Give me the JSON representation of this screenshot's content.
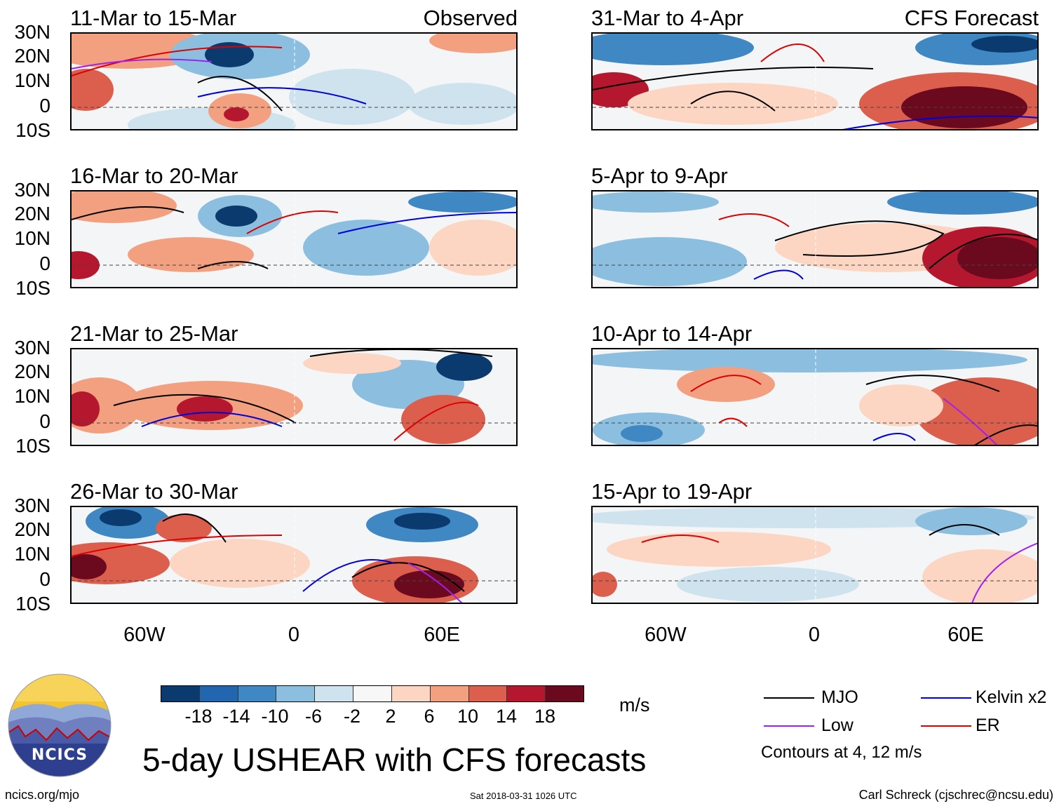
{
  "colors": {
    "mjo": "#000000",
    "low": "#a020f0",
    "kelvin": "#0000dd",
    "er": "#dd0000",
    "colorbar": [
      "#0a3a6e",
      "#2266b0",
      "#3f88c4",
      "#8cbfdf",
      "#cfe3ef",
      "#f7f7f7",
      "#fcd6c3",
      "#f2a07f",
      "#dc5e4c",
      "#b4172e",
      "#6b0a1e"
    ]
  },
  "panels": [
    {
      "title": "11-Mar to 15-Mar",
      "label": "Observed"
    },
    {
      "title": "16-Mar to 20-Mar",
      "label": ""
    },
    {
      "title": "21-Mar to 25-Mar",
      "label": ""
    },
    {
      "title": "26-Mar to 30-Mar",
      "label": ""
    },
    {
      "title": "31-Mar to 4-Apr",
      "label": "CFS Forecast"
    },
    {
      "title": "5-Apr to 9-Apr",
      "label": ""
    },
    {
      "title": "10-Apr to 14-Apr",
      "label": ""
    },
    {
      "title": "15-Apr to 19-Apr",
      "label": ""
    }
  ],
  "lat_labels": [
    "30N",
    "20N",
    "10N",
    "0",
    "10S"
  ],
  "lon_labels": [
    "60W",
    "0",
    "60E"
  ],
  "colorbar": {
    "labels": [
      "-18",
      "-14",
      "-10",
      "-6",
      "-2",
      "2",
      "6",
      "10",
      "14",
      "18"
    ],
    "units": "m/s"
  },
  "legend": {
    "mjo": "MJO",
    "kelvin": "Kelvin x2",
    "low": "Low",
    "er": "ER",
    "note": "Contours at 4, 12 m/s"
  },
  "title": "5-day USHEAR with CFS forecasts",
  "logo_text": "NCICS",
  "footer": {
    "left": "ncics.org/mjo",
    "center": "Sat 2018-03-31 1026 UTC",
    "right": "Carl Schreck (cjschrec@ncsu.edu)"
  }
}
